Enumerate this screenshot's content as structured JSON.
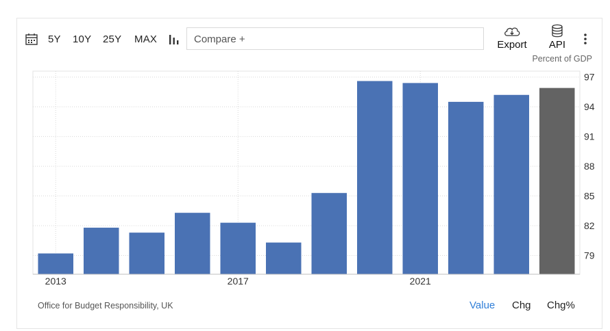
{
  "toolbar": {
    "ranges": [
      "5Y",
      "10Y",
      "25Y",
      "MAX"
    ],
    "compare_label": "Compare +",
    "export_label": "Export",
    "api_label": "API"
  },
  "unit_label": "Percent of GDP",
  "source": "Office for Budget Responsibility, UK",
  "tabs": [
    "Value",
    "Chg",
    "Chg%"
  ],
  "colors": {
    "bar": "#4a72b4",
    "forecast_bar": "#636363",
    "active_tab": "#2f7ed8"
  },
  "chart_data": {
    "type": "bar",
    "x": [
      2013,
      2014,
      2015,
      2016,
      2017,
      2018,
      2019,
      2020,
      2021,
      2022,
      2023,
      2024
    ],
    "values": [
      79.2,
      81.8,
      81.3,
      83.3,
      82.3,
      80.3,
      85.3,
      96.6,
      96.4,
      94.5,
      95.2,
      95.9
    ],
    "x_tick_labels": [
      "2013",
      "2017",
      "2021"
    ],
    "y_ticks": [
      79,
      82,
      85,
      88,
      91,
      94,
      97
    ],
    "ylim": [
      77.1,
      97.6
    ],
    "y_axis_position": "right",
    "grid": true,
    "last_bar_forecast": true
  }
}
